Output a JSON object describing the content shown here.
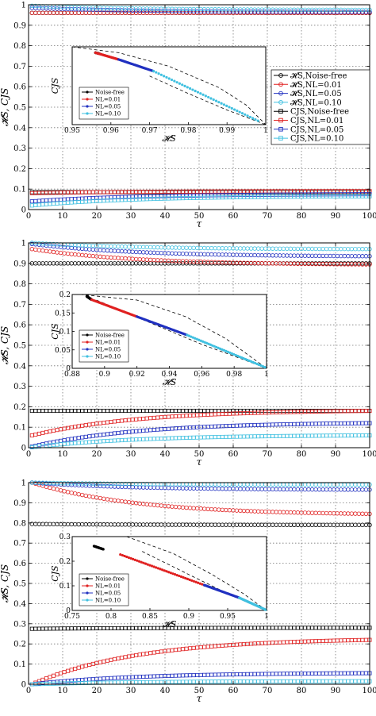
{
  "chart_data": [
    {
      "type": "scatter",
      "xlabel": "τ",
      "ylabel": "𝓗S, CJS",
      "xlim": [
        0,
        100
      ],
      "ylim": [
        0,
        1
      ],
      "xticks": [
        "0",
        "10",
        "20",
        "30",
        "40",
        "50",
        "60",
        "70",
        "80",
        "90",
        "100"
      ],
      "yticks": [
        "0",
        "0.1",
        "0.2",
        "0.3",
        "0.4",
        "0.5",
        "0.6",
        "0.7",
        "0.8",
        "0.9",
        "1"
      ],
      "grid": true,
      "legend": {
        "placement": "right",
        "entries": [
          {
            "label": "𝓗S,Noise-free",
            "color": "#000000",
            "marker": "circle"
          },
          {
            "label": "𝓗S,NL=0.01",
            "color": "#e02020",
            "marker": "circle"
          },
          {
            "label": "𝓗S,NL=0.05",
            "color": "#2030c0",
            "marker": "circle"
          },
          {
            "label": "𝓗S,NL=0.10",
            "color": "#40c0e0",
            "marker": "circle"
          },
          {
            "label": "CJS,Noise-free",
            "color": "#000000",
            "marker": "square"
          },
          {
            "label": "CJS,NL=0.01",
            "color": "#e02020",
            "marker": "square"
          },
          {
            "label": "CJS,NL=0.05",
            "color": "#2030c0",
            "marker": "square"
          },
          {
            "label": "CJS,NL=0.10",
            "color": "#40c0e0",
            "marker": "square"
          }
        ]
      },
      "series": [
        {
          "quantity": "H",
          "color": "#000000",
          "marker": "circle",
          "y_start": 0.96,
          "y_end": 0.96
        },
        {
          "quantity": "H",
          "color": "#e02020",
          "marker": "circle",
          "y_start": 0.96,
          "y_end": 0.96
        },
        {
          "quantity": "H",
          "color": "#2030c0",
          "marker": "circle",
          "y_start": 0.985,
          "y_end": 0.965
        },
        {
          "quantity": "H",
          "color": "#40c0e0",
          "marker": "circle",
          "y_start": 0.995,
          "y_end": 0.975
        },
        {
          "quantity": "C",
          "color": "#000000",
          "marker": "square",
          "y_start": 0.085,
          "y_end": 0.085
        },
        {
          "quantity": "C",
          "color": "#e02020",
          "marker": "square",
          "y_start": 0.08,
          "y_end": 0.09
        },
        {
          "quantity": "C",
          "color": "#2030c0",
          "marker": "square",
          "y_start": 0.04,
          "y_end": 0.075
        },
        {
          "quantity": "C",
          "color": "#40c0e0",
          "marker": "square",
          "y_start": 0.02,
          "y_end": 0.065
        }
      ],
      "inset": {
        "xlabel": "𝓗S",
        "ylabel": "CJS",
        "xlim": [
          0.95,
          1
        ],
        "ylim": [
          0,
          0.8
        ],
        "xticks": [
          "0.95",
          "0.96",
          "0.97",
          "0.98",
          "0.99",
          "1"
        ],
        "yticks": [],
        "legend": [
          "Noise-free",
          "NL=0.01",
          "NL=0.05",
          "NL=0.10"
        ],
        "bound_upper": [
          [
            0.95,
            0.8
          ],
          [
            0.962,
            0.74
          ],
          [
            0.975,
            0.6
          ],
          [
            0.988,
            0.38
          ],
          [
            0.995,
            0.2
          ],
          [
            1,
            0
          ]
        ],
        "bound_lower": [
          [
            0.97,
            0.5
          ],
          [
            0.98,
            0.32
          ],
          [
            0.99,
            0.15
          ],
          [
            1,
            0
          ]
        ],
        "segments": [
          {
            "color": "#000000",
            "from": [
              0.956,
              0.74
            ],
            "to": [
              0.957,
              0.73
            ]
          },
          {
            "color": "#e02020",
            "from": [
              0.956,
              0.74
            ],
            "to": [
              0.962,
              0.67
            ]
          },
          {
            "color": "#2030c0",
            "from": [
              0.962,
              0.67
            ],
            "to": [
              0.971,
              0.55
            ]
          },
          {
            "color": "#40c0e0",
            "from": [
              0.971,
              0.55
            ],
            "to": [
              0.998,
              0.04
            ]
          }
        ]
      }
    },
    {
      "type": "scatter",
      "xlabel": "τ",
      "ylabel": "𝓗S, CJS",
      "xlim": [
        0,
        100
      ],
      "ylim": [
        0,
        1
      ],
      "xticks": [
        "0",
        "10",
        "20",
        "30",
        "40",
        "50",
        "60",
        "70",
        "80",
        "90",
        "100"
      ],
      "yticks": [
        "0",
        "0.1",
        "0.2",
        "0.3",
        "0.4",
        "0.5",
        "0.6",
        "0.7",
        "0.8",
        "0.9",
        "1"
      ],
      "grid": true,
      "series": [
        {
          "quantity": "H",
          "color": "#000000",
          "marker": "circle",
          "y_start": 0.9,
          "y_end": 0.9
        },
        {
          "quantity": "H",
          "color": "#e02020",
          "marker": "circle",
          "y_start": 0.97,
          "y_end": 0.895
        },
        {
          "quantity": "H",
          "color": "#2030c0",
          "marker": "circle",
          "y_start": 0.995,
          "y_end": 0.935
        },
        {
          "quantity": "H",
          "color": "#40c0e0",
          "marker": "circle",
          "y_start": 1.0,
          "y_end": 0.97
        },
        {
          "quantity": "C",
          "color": "#000000",
          "marker": "square",
          "y_start": 0.18,
          "y_end": 0.18
        },
        {
          "quantity": "C",
          "color": "#e02020",
          "marker": "square",
          "y_start": 0.06,
          "y_end": 0.18
        },
        {
          "quantity": "C",
          "color": "#2030c0",
          "marker": "square",
          "y_start": 0.005,
          "y_end": 0.12
        },
        {
          "quantity": "C",
          "color": "#40c0e0",
          "marker": "square",
          "y_start": 0.002,
          "y_end": 0.06
        }
      ],
      "inset": {
        "xlabel": "𝓗S",
        "ylabel": "CJS",
        "xlim": [
          0.88,
          1
        ],
        "ylim": [
          0,
          0.2
        ],
        "xticks": [
          "0.88",
          "0.9",
          "0.92",
          "0.94",
          "0.96",
          "0.98",
          "1"
        ],
        "yticks": [
          "0",
          "0.05",
          "0.1",
          "0.15",
          "0.2"
        ],
        "legend": [
          "Noise-free",
          "NL=0.01",
          "NL=0.05",
          "NL=0.10"
        ],
        "bound_upper": [
          [
            0.885,
            0.2
          ],
          [
            0.92,
            0.185
          ],
          [
            0.95,
            0.14
          ],
          [
            0.975,
            0.08
          ],
          [
            1,
            0
          ]
        ],
        "bound_lower": [
          [
            0.895,
            0.185
          ],
          [
            0.93,
            0.12
          ],
          [
            0.96,
            0.065
          ],
          [
            0.985,
            0.025
          ],
          [
            1,
            0
          ]
        ],
        "segments": [
          {
            "color": "#000000",
            "from": [
              0.889,
              0.195
            ],
            "to": [
              0.892,
              0.186
            ]
          },
          {
            "color": "#e02020",
            "from": [
              0.892,
              0.186
            ],
            "to": [
              0.92,
              0.14
            ]
          },
          {
            "color": "#2030c0",
            "from": [
              0.92,
              0.14
            ],
            "to": [
              0.951,
              0.09
            ]
          },
          {
            "color": "#40c0e0",
            "from": [
              0.951,
              0.09
            ],
            "to": [
              0.999,
              0.003
            ]
          }
        ]
      }
    },
    {
      "type": "scatter",
      "xlabel": "τ",
      "ylabel": "𝓗S, CJS",
      "xlim": [
        0,
        100
      ],
      "ylim": [
        0,
        1
      ],
      "xticks": [
        "0",
        "10",
        "20",
        "30",
        "40",
        "50",
        "60",
        "70",
        "80",
        "90",
        "100"
      ],
      "yticks": [
        "0",
        "0.1",
        "0.2",
        "0.3",
        "0.4",
        "0.5",
        "0.6",
        "0.7",
        "0.8",
        "0.9",
        "1"
      ],
      "grid": true,
      "series": [
        {
          "quantity": "H",
          "color": "#000000",
          "marker": "circle",
          "y_start": 0.795,
          "y_end": 0.79
        },
        {
          "quantity": "H",
          "color": "#e02020",
          "marker": "circle",
          "y_start": 1.0,
          "y_end": 0.845
        },
        {
          "quantity": "H",
          "color": "#2030c0",
          "marker": "circle",
          "y_start": 1.0,
          "y_end": 0.965
        },
        {
          "quantity": "H",
          "color": "#40c0e0",
          "marker": "circle",
          "y_start": 1.0,
          "y_end": 0.99
        },
        {
          "quantity": "C",
          "color": "#000000",
          "marker": "square",
          "y_start": 0.275,
          "y_end": 0.28
        },
        {
          "quantity": "C",
          "color": "#e02020",
          "marker": "square",
          "y_start": 0.0,
          "y_end": 0.22
        },
        {
          "quantity": "C",
          "color": "#2030c0",
          "marker": "square",
          "y_start": 0.0,
          "y_end": 0.055
        },
        {
          "quantity": "C",
          "color": "#40c0e0",
          "marker": "square",
          "y_start": 0.0,
          "y_end": 0.015
        }
      ],
      "inset": {
        "xlabel": "𝓗S",
        "ylabel": "CJS",
        "xlim": [
          0.75,
          1
        ],
        "ylim": [
          0,
          0.35
        ],
        "xticks": [
          "0.75",
          "0.8",
          "0.85",
          "0.9",
          "0.95",
          "1"
        ],
        "yticks": [
          "0",
          "0.1",
          "0.2",
          "0.3"
        ],
        "legend": [
          "Noise-free",
          "NL=0.01",
          "NL=0.05",
          "NL=0.10"
        ],
        "bound_upper": [
          [
            0.82,
            0.35
          ],
          [
            0.88,
            0.27
          ],
          [
            0.93,
            0.17
          ],
          [
            0.97,
            0.08
          ],
          [
            1,
            0
          ]
        ],
        "bound_lower": [
          [
            0.84,
            0.28
          ],
          [
            0.9,
            0.17
          ],
          [
            0.95,
            0.08
          ],
          [
            0.98,
            0.03
          ],
          [
            1,
            0
          ]
        ],
        "segments": [
          {
            "color": "#000000",
            "from": [
              0.778,
              0.305
            ],
            "to": [
              0.79,
              0.29
            ]
          },
          {
            "color": "#e02020",
            "from": [
              0.812,
              0.265
            ],
            "to": [
              0.92,
              0.12
            ]
          },
          {
            "color": "#2030c0",
            "from": [
              0.92,
              0.12
            ],
            "to": [
              0.965,
              0.06
            ]
          },
          {
            "color": "#40c0e0",
            "from": [
              0.965,
              0.06
            ],
            "to": [
              0.999,
              0.003
            ]
          }
        ]
      }
    }
  ]
}
